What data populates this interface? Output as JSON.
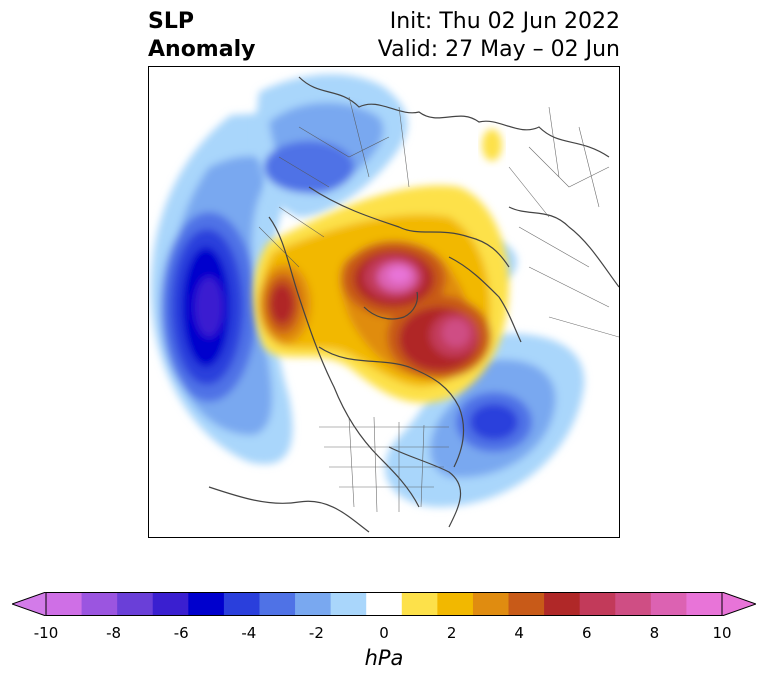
{
  "title": {
    "left_line1": "SLP",
    "left_line2": "Anomaly",
    "right_line1": "Init: Thu 02 Jun 2022",
    "right_line2": "Valid: 27 May – 02 Jun"
  },
  "colorbar": {
    "unit": "hPa",
    "levels": [
      -10,
      -9,
      -8,
      -7,
      -6,
      -5,
      -4,
      -3,
      -2,
      -1,
      1,
      2,
      3,
      4,
      5,
      6,
      7,
      8,
      9,
      10
    ],
    "colors": [
      "#cf6fe6",
      "#9b55e0",
      "#6a3fd8",
      "#3a1fd0",
      "#0000cd",
      "#2a3fdc",
      "#4f72e6",
      "#79a8f0",
      "#a9d6fb",
      "#ffffff",
      "#fde14a",
      "#f2b800",
      "#e08c10",
      "#c85a18",
      "#b02828",
      "#c23a5a",
      "#cf4e84",
      "#dc62b2",
      "#e874d8"
    ],
    "under_color": "#d37be9",
    "over_color": "#e874d8",
    "tick_labels": [
      "-10",
      "-8",
      "-6",
      "-4",
      "-2",
      "0",
      "2",
      "4",
      "6",
      "8",
      "10"
    ]
  }
}
